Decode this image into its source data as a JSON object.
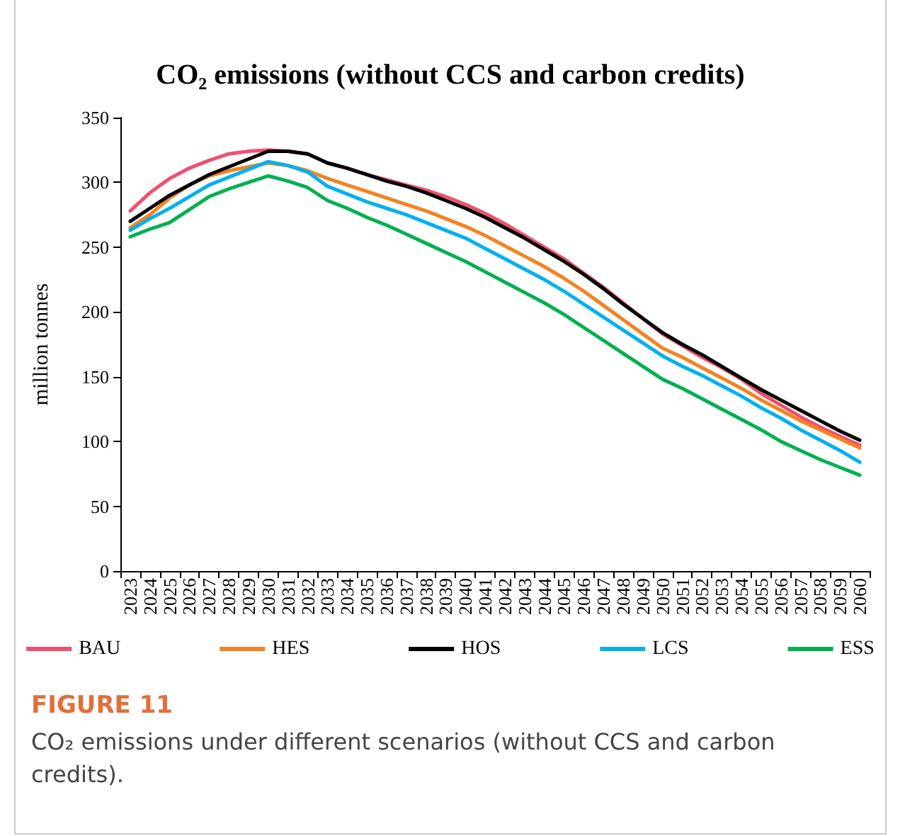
{
  "chart_data": {
    "type": "line",
    "title": "CO₂ emissions (without CCS and carbon credits)",
    "ylabel": "million tonnes",
    "categories": [
      "2023",
      "2024",
      "2025",
      "2026",
      "2027",
      "2028",
      "2029",
      "2030",
      "2031",
      "2032",
      "2033",
      "2034",
      "2035",
      "2036",
      "2037",
      "2038",
      "2039",
      "2040",
      "2041",
      "2042",
      "2043",
      "2044",
      "2045",
      "2046",
      "2047",
      "2048",
      "2049",
      "2050",
      "2051",
      "2052",
      "2053",
      "2054",
      "2055",
      "2056",
      "2057",
      "2058",
      "2059",
      "2060"
    ],
    "series": [
      {
        "name": "BAU",
        "color": "#f0506e",
        "values": [
          278,
          292,
          303,
          311,
          317,
          322,
          324,
          325,
          324,
          322,
          315,
          311,
          306,
          302,
          298,
          294,
          289,
          283,
          276,
          268,
          259,
          250,
          241,
          230,
          219,
          207,
          195,
          183,
          174,
          165,
          157,
          148,
          137,
          128,
          119,
          111,
          104,
          97
        ]
      },
      {
        "name": "HES",
        "color": "#f5821f",
        "values": [
          265,
          275,
          288,
          298,
          305,
          309,
          312,
          315,
          313,
          309,
          303,
          298,
          293,
          288,
          283,
          278,
          272,
          266,
          259,
          251,
          243,
          235,
          226,
          216,
          205,
          194,
          183,
          172,
          165,
          157,
          149,
          141,
          132,
          124,
          116,
          109,
          102,
          95
        ]
      },
      {
        "name": "HOS",
        "color": "#000000",
        "values": [
          270,
          280,
          290,
          298,
          306,
          312,
          318,
          324,
          324,
          322,
          315,
          311,
          306,
          301,
          297,
          292,
          286,
          280,
          273,
          265,
          257,
          248,
          239,
          229,
          218,
          206,
          195,
          184,
          175,
          167,
          158,
          149,
          140,
          132,
          124,
          116,
          108,
          101
        ]
      },
      {
        "name": "LCS",
        "color": "#00b0f0",
        "values": [
          263,
          272,
          280,
          289,
          298,
          304,
          310,
          316,
          313,
          308,
          297,
          291,
          285,
          280,
          275,
          269,
          263,
          257,
          249,
          241,
          233,
          225,
          216,
          206,
          196,
          186,
          176,
          166,
          158,
          151,
          143,
          135,
          126,
          118,
          109,
          101,
          93,
          84
        ]
      },
      {
        "name": "ESS",
        "color": "#00b050",
        "values": [
          258,
          264,
          269,
          279,
          289,
          295,
          300,
          305,
          301,
          296,
          286,
          280,
          273,
          267,
          260,
          253,
          246,
          239,
          231,
          223,
          215,
          207,
          198,
          188,
          178,
          168,
          158,
          148,
          141,
          133,
          125,
          117,
          109,
          100,
          93,
          86,
          80,
          74
        ]
      }
    ],
    "ylim": [
      0,
      350
    ],
    "yticks": [
      0,
      50,
      100,
      150,
      200,
      250,
      300,
      350
    ],
    "grid": false,
    "legend": "bottom",
    "marker": "none",
    "line_style": "solid",
    "annotations": [
      "FIGURE 11",
      "CO₂ emissions under different scenarios (without CCS and carbon credits)."
    ]
  }
}
